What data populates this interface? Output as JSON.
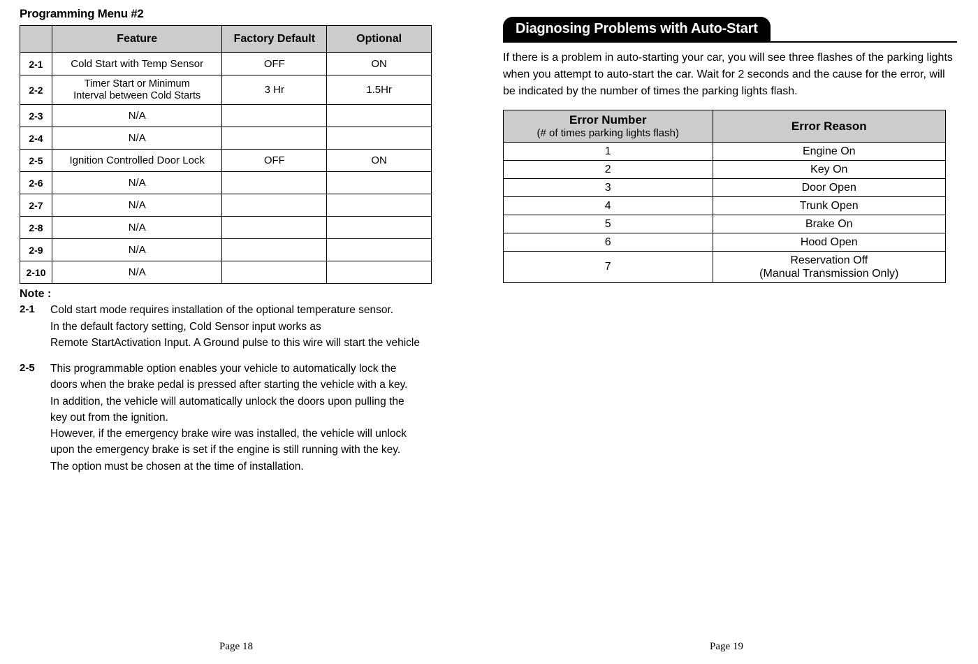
{
  "left": {
    "title": "Programming Menu #2",
    "table": {
      "headers": {
        "id": "",
        "feature": "Feature",
        "default": "Factory Default",
        "optional": "Optional"
      },
      "rows": [
        {
          "id": "2-1",
          "feature": "Cold Start with Temp Sensor",
          "default": "OFF",
          "optional": "ON"
        },
        {
          "id": "2-2",
          "feature": "Timer Start or Minimum\nInterval between Cold Starts",
          "default": "3 Hr",
          "optional": "1.5Hr"
        },
        {
          "id": "2-3",
          "feature": "N/A",
          "default": "",
          "optional": ""
        },
        {
          "id": "2-4",
          "feature": "N/A",
          "default": "",
          "optional": ""
        },
        {
          "id": "2-5",
          "feature": "Ignition Controlled  Door Lock",
          "default": "OFF",
          "optional": "ON"
        },
        {
          "id": "2-6",
          "feature": "N/A",
          "default": "",
          "optional": ""
        },
        {
          "id": "2-7",
          "feature": "N/A",
          "default": "",
          "optional": ""
        },
        {
          "id": "2-8",
          "feature": "N/A",
          "default": "",
          "optional": ""
        },
        {
          "id": "2-9",
          "feature": "N/A",
          "default": "",
          "optional": ""
        },
        {
          "id": "2-10",
          "feature": "N/A",
          "default": "",
          "optional": ""
        }
      ]
    },
    "note_title": "Note :",
    "notes": [
      {
        "id": "2-1",
        "text": "Cold start mode requires installation of the optional temperature sensor.\nIn the default factory setting, Cold Sensor input works as\nRemote StartActivation Input. A Ground pulse to this wire will start the vehicle"
      },
      {
        "id": "2-5",
        "text": "This programmable option enables your vehicle to automatically lock the\ndoors when the brake pedal is pressed after starting the vehicle with a key.\nIn addition, the vehicle will automatically unlock the doors upon pulling the\nkey out from the ignition.\nHowever, if the emergency brake wire was installed, the vehicle will unlock\nupon the emergency brake is set if the engine is still running with the key.\nThe option must be chosen at the time of installation."
      }
    ],
    "page_num": "Page 18"
  },
  "right": {
    "tab_title": "Diagnosing Problems with Auto-Start",
    "intro": "If there is a problem in auto-starting your car, you will see three flashes of the parking lights when you attempt to auto-start the car. Wait for 2 seconds and the cause for the error, will be indicated by the number of times the parking lights flash.",
    "error_table": {
      "headers": {
        "num_main": "Error Number",
        "num_sub": "(# of times parking lights flash)",
        "reason": "Error Reason"
      },
      "rows": [
        {
          "num": "1",
          "reason": "Engine On"
        },
        {
          "num": "2",
          "reason": "Key On"
        },
        {
          "num": "3",
          "reason": "Door Open"
        },
        {
          "num": "4",
          "reason": "Trunk Open"
        },
        {
          "num": "5",
          "reason": "Brake On"
        },
        {
          "num": "6",
          "reason": "Hood Open"
        },
        {
          "num": "7",
          "reason": "Reservation Off\n(Manual Transmission Only)"
        }
      ]
    },
    "page_num": "Page 19"
  },
  "colors": {
    "header_bg": "#cccccc",
    "text": "#000000",
    "background": "#ffffff"
  }
}
